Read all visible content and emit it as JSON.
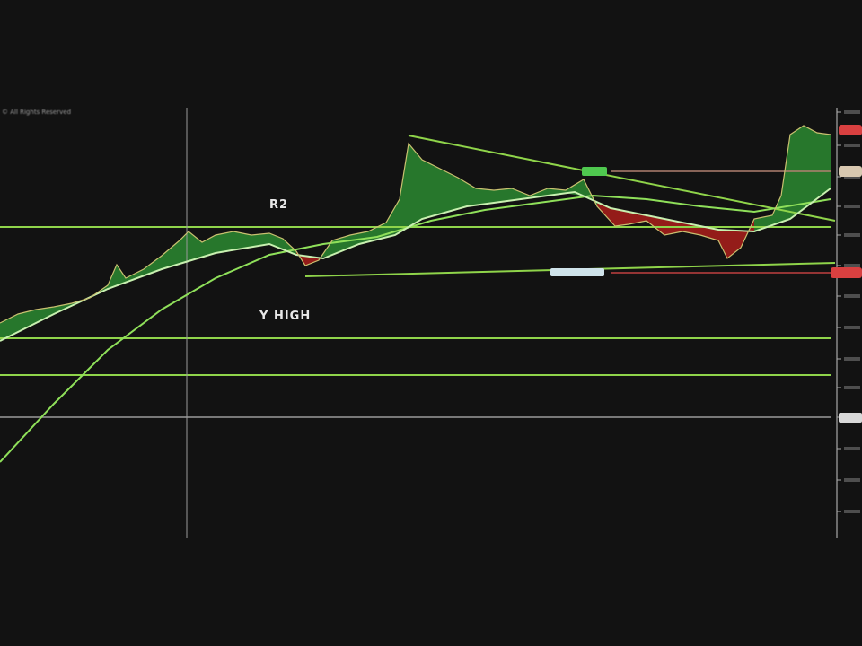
{
  "header": {
    "copyright": "© All Rights Reserved"
  },
  "annotations": {
    "r2": "R2",
    "y_high": "Y HIGH"
  },
  "colors": {
    "background": "#121212",
    "level_lines": "#8fd44a",
    "bull_fill": "#2f9a35",
    "bear_fill": "#c0201c",
    "price_line": "#c9c070",
    "crosshair": "#9a9a9a",
    "price_tag_red": "#d94040",
    "price_tag_tan": "#d8c8b0"
  },
  "chart_data": {
    "type": "line",
    "title": "",
    "xlabel": "",
    "ylabel": "",
    "horizontal_levels": [
      "R2",
      "Y HIGH"
    ],
    "trendlines": 3,
    "moving_averages": 2,
    "grid": false
  }
}
